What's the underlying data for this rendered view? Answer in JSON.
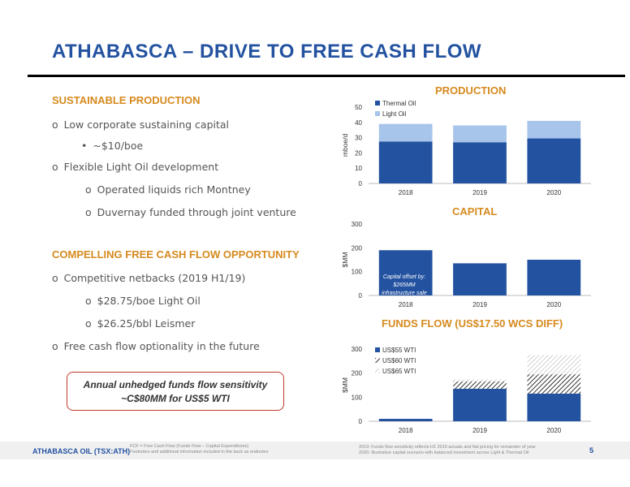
{
  "title": "ATHABASCA – DRIVE TO FREE CASH FLOW",
  "left": {
    "section1_heading": "SUSTAINABLE PRODUCTION",
    "s1_b1": "Low corporate sustaining capital",
    "s1_b1_sub": "~$10/boe",
    "s1_b2": "Flexible Light Oil development",
    "s1_b2_sub1": "Operated liquids rich Montney",
    "s1_b2_sub2": "Duvernay funded through joint venture",
    "section2_heading": "COMPELLING FREE CASH FLOW OPPORTUNITY",
    "s2_b1": "Competitive netbacks (2019 H1/19)",
    "s2_b1_sub1": "$28.75/boe Light Oil",
    "s2_b1_sub2": "$26.25/bbl Leismer",
    "s2_b2": "Free cash flow optionality in the future",
    "bullet_o": "o",
    "bullet_dot": "•",
    "callout_line1": "Annual unhedged funds flow sensitivity",
    "callout_line2": "~C$80MM for US$5 WTI"
  },
  "chart_data": [
    {
      "type": "bar",
      "title": "PRODUCTION",
      "ylabel": "mboe/d",
      "categories": [
        "2018",
        "2019",
        "2020"
      ],
      "ylim": [
        0,
        50
      ],
      "yticks": [
        0,
        10,
        20,
        30,
        40,
        50
      ],
      "stacked": true,
      "series": [
        {
          "name": "Thermal Oil",
          "color": "#2352a0",
          "values": [
            27.5,
            27,
            29.5
          ]
        },
        {
          "name": "Light Oil",
          "color": "#a7c4ea",
          "values": [
            11.5,
            11,
            11.5
          ]
        }
      ]
    },
    {
      "type": "bar",
      "title": "CAPITAL",
      "ylabel": "$MM",
      "categories": [
        "2018",
        "2019",
        "2020"
      ],
      "ylim": [
        0,
        300
      ],
      "yticks": [
        0,
        100,
        200,
        300
      ],
      "series": [
        {
          "color": "#2352a0",
          "values": [
            190,
            135,
            150
          ]
        }
      ],
      "annotation": [
        "Capital offset by:",
        "$265MM",
        "infrastructure sale"
      ]
    },
    {
      "type": "bar",
      "title": "FUNDS FLOW (US$17.50 WCS DIFF)",
      "ylabel": "$MM",
      "categories": [
        "2018",
        "2019",
        "2020"
      ],
      "ylim": [
        0,
        300
      ],
      "yticks": [
        0,
        100,
        200,
        300
      ],
      "stacked": true,
      "series": [
        {
          "name": "US$55 WTI",
          "color": "#2352a0",
          "pattern": "solid",
          "values": [
            10,
            135,
            115
          ]
        },
        {
          "name": "US$60 WTI",
          "color": "#333333",
          "pattern": "hatch-dense",
          "values": [
            0,
            30,
            80
          ]
        },
        {
          "name": "US$65 WTI",
          "color": "#999999",
          "pattern": "hatch-light",
          "values": [
            0,
            10,
            80
          ]
        }
      ]
    }
  ],
  "footer": {
    "company": "ATHABASCA OIL (TSX:ATH)",
    "note1": "FCF = Free Cash Flow (Funds Flow – Capital Expenditures)",
    "note2": "Footnotes and additional information included in the back as endnotes",
    "note3": "2019: Funds flow sensitivity reflects H1 2019 actuals and flat pricing for remainder of year",
    "note4": "2020: Illustrative capital scenario with balanced investment across Light & Thermal Oil",
    "page": "5"
  }
}
